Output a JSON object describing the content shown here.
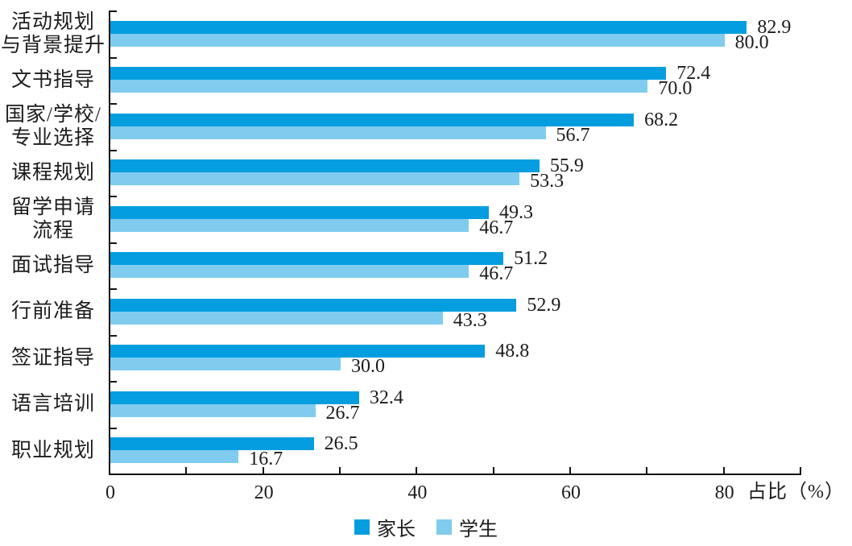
{
  "chart_data": {
    "type": "bar",
    "orientation": "horizontal",
    "title": "",
    "xlabel": "占比（%）",
    "xlim": [
      0,
      90
    ],
    "xticks": [
      0,
      20,
      40,
      60,
      80
    ],
    "minor_tick_step": 10,
    "grid": false,
    "legend_position": "bottom",
    "categories": [
      "活动规划\n与背景提升",
      "文书指导",
      "国家/学校/\n专业选择",
      "课程规划",
      "留学申请\n流程",
      "面试指导",
      "行前准备",
      "签证指导",
      "语言培训",
      "职业规划"
    ],
    "series": [
      {
        "key": "parent",
        "name": "家长",
        "color": "#049ee0",
        "values": [
          82.9,
          72.4,
          68.2,
          55.9,
          49.3,
          51.2,
          52.9,
          48.8,
          32.4,
          26.5
        ]
      },
      {
        "key": "student",
        "name": "学生",
        "color": "#7fccef",
        "values": [
          80.0,
          70.0,
          56.7,
          53.3,
          46.7,
          46.7,
          43.3,
          30.0,
          26.7,
          16.7
        ]
      }
    ],
    "value_label_decimals": 1
  },
  "colors": {
    "axis": "#141414",
    "text": "#1c1c1c",
    "background": "#ffffff",
    "parent_blue": "#049ee0",
    "student_blue": "#7fccef"
  }
}
